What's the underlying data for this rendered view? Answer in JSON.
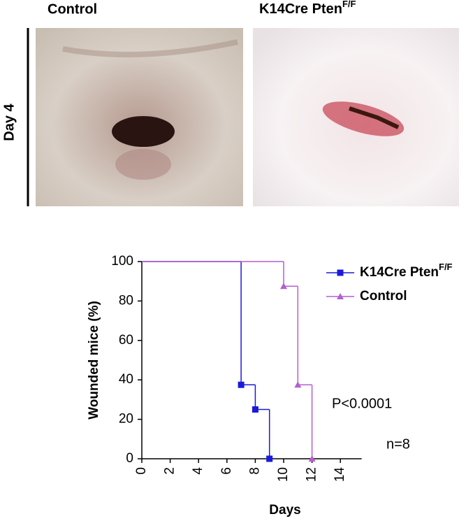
{
  "figure": {
    "column_labels": [
      {
        "text": "Control"
      },
      {
        "text": "K14Cre Pten",
        "sup": "F/F"
      }
    ],
    "row_label": "Day 4"
  },
  "chart_data": {
    "type": "step",
    "xlabel": "Days",
    "ylabel": "Wounded mice (%)",
    "xlim": [
      0,
      15.5
    ],
    "xticks": [
      0,
      2,
      4,
      6,
      8,
      10,
      12,
      14
    ],
    "ylim": [
      0,
      100
    ],
    "yticks": [
      0,
      20,
      40,
      60,
      80,
      100
    ],
    "series": [
      {
        "name": "K14Cre Pten",
        "name_sup": "F/F",
        "color": "#1a1adb",
        "marker": "square",
        "x": [
          0,
          7,
          8,
          9
        ],
        "values": [
          100,
          37.5,
          25,
          0
        ]
      },
      {
        "name": "Control",
        "color": "#b45fd0",
        "marker": "triangle",
        "x": [
          0,
          10,
          11,
          12
        ],
        "values": [
          100,
          87.5,
          37.5,
          0
        ]
      }
    ],
    "annotations": [
      "P<0.0001",
      "n=8"
    ]
  }
}
